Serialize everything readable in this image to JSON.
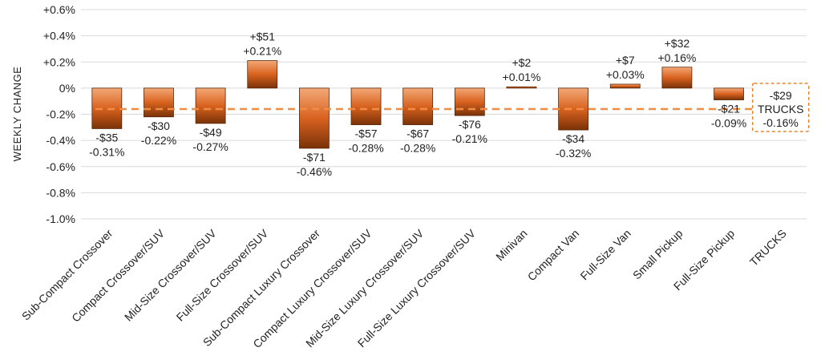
{
  "chart_data": {
    "type": "bar",
    "title": "",
    "xlabel": "",
    "ylabel": "WEEKLY CHANGE",
    "ylim": [
      -1.0,
      0.6
    ],
    "y_ticks": [
      0.6,
      0.4,
      0.2,
      0,
      -0.2,
      -0.4,
      -0.6,
      -0.8,
      -1.0
    ],
    "y_tick_labels": [
      "+0.6%",
      "+0.4%",
      "+0.2%",
      "0%",
      "-0.2%",
      "-0.4%",
      "-0.6%",
      "-0.8%",
      "-1.0%"
    ],
    "grid": true,
    "categories": [
      "Sub-Compact Crossover",
      "Compact Crossover/SUV",
      "Mid-Size Crossover/SUV",
      "Full-Size Crossover/SUV",
      "Sub-Compact Luxury Crossover",
      "Compact Luxury Crossover/SUV",
      "Mid-Size Luxury Crossover/SUV",
      "Full-Size Luxury Crossover/SUV",
      "Minivan",
      "Compact Van",
      "Full-Size Van",
      "Small Pickup",
      "Full-Size Pickup",
      "TRUCKS"
    ],
    "values": [
      -0.31,
      -0.22,
      -0.27,
      0.21,
      -0.46,
      -0.28,
      -0.28,
      -0.21,
      0.01,
      -0.32,
      0.03,
      0.16,
      -0.09,
      -0.16
    ],
    "dollar_labels": [
      "-$35",
      "-$30",
      "-$49",
      "+$51",
      "-$71",
      "-$57",
      "-$67",
      "-$76",
      "+$2",
      "-$34",
      "+$7",
      "+$32",
      "-$21",
      "-$29"
    ],
    "percent_labels": [
      "-0.31%",
      "-0.22%",
      "-0.27%",
      "+0.21%",
      "-0.46%",
      "-0.28%",
      "-0.28%",
      "-0.21%",
      "+0.01%",
      "-0.32%",
      "+0.03%",
      "+0.16%",
      "-0.09%",
      "-0.16%"
    ],
    "summary": {
      "category": "TRUCKS",
      "dollar_label": "-$29",
      "name_label": "TRUCKS",
      "percent_label": "-0.16%",
      "value": -0.16
    },
    "colors": {
      "bar_top": "#f3a877",
      "bar_mid": "#d9621f",
      "bar_bottom": "#7a3208",
      "bar_stroke": "#5a2606",
      "reference_line": "#ef8d45",
      "grid": "#d9d9d9",
      "summary_box": "#e6862f"
    }
  }
}
